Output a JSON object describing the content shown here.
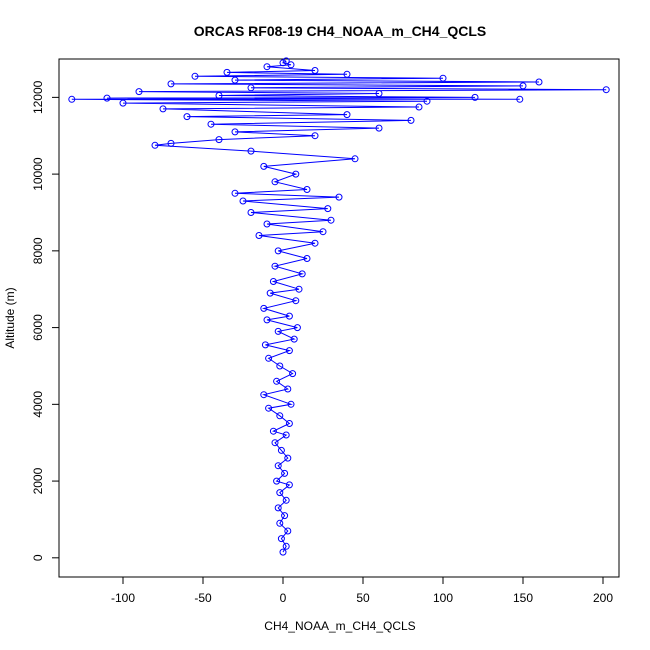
{
  "chart_data": {
    "type": "scatter",
    "title": "ORCAS RF08-19 CH4_NOAA_m_CH4_QCLS",
    "xlabel": "CH4_NOAA_m_CH4_QCLS",
    "ylabel": "Altitude (m)",
    "xlim": [
      -140,
      210
    ],
    "ylim": [
      -500,
      13000
    ],
    "x_ticks": [
      -100,
      -50,
      0,
      50,
      100,
      150,
      200
    ],
    "y_ticks": [
      0,
      2000,
      4000,
      6000,
      8000,
      10000,
      12000
    ],
    "grid": false,
    "legend": "none",
    "series_color": "#0000ff",
    "marker": "open-circle",
    "connected": true,
    "series": [
      {
        "points": [
          [
            0,
            150
          ],
          [
            2,
            300
          ],
          [
            -1,
            500
          ],
          [
            3,
            700
          ],
          [
            -2,
            900
          ],
          [
            1,
            1100
          ],
          [
            -3,
            1300
          ],
          [
            2,
            1500
          ],
          [
            -2,
            1700
          ],
          [
            4,
            1900
          ],
          [
            -4,
            2000
          ],
          [
            1,
            2200
          ],
          [
            -3,
            2400
          ],
          [
            3,
            2600
          ],
          [
            -1,
            2800
          ],
          [
            -5,
            3000
          ],
          [
            2,
            3200
          ],
          [
            -6,
            3300
          ],
          [
            4,
            3500
          ],
          [
            -2,
            3700
          ],
          [
            -9,
            3900
          ],
          [
            5,
            4000
          ],
          [
            -12,
            4250
          ],
          [
            3,
            4400
          ],
          [
            -4,
            4600
          ],
          [
            6,
            4800
          ],
          [
            -2,
            5000
          ],
          [
            -9,
            5200
          ],
          [
            4,
            5400
          ],
          [
            -11,
            5550
          ],
          [
            7,
            5700
          ],
          [
            -3,
            5900
          ],
          [
            9,
            6000
          ],
          [
            -10,
            6200
          ],
          [
            4,
            6300
          ],
          [
            -12,
            6500
          ],
          [
            8,
            6700
          ],
          [
            -8,
            6900
          ],
          [
            10,
            7000
          ],
          [
            -6,
            7200
          ],
          [
            12,
            7400
          ],
          [
            -5,
            7600
          ],
          [
            15,
            7800
          ],
          [
            -3,
            8000
          ],
          [
            20,
            8200
          ],
          [
            -15,
            8400
          ],
          [
            25,
            8500
          ],
          [
            -10,
            8700
          ],
          [
            30,
            8800
          ],
          [
            -20,
            9000
          ],
          [
            28,
            9100
          ],
          [
            -25,
            9300
          ],
          [
            35,
            9400
          ],
          [
            -30,
            9500
          ],
          [
            15,
            9600
          ],
          [
            -5,
            9800
          ],
          [
            8,
            10000
          ],
          [
            -12,
            10200
          ],
          [
            45,
            10400
          ],
          [
            -20,
            10600
          ],
          [
            -80,
            10750
          ],
          [
            -70,
            10800
          ],
          [
            -40,
            10900
          ],
          [
            20,
            11000
          ],
          [
            -30,
            11100
          ],
          [
            60,
            11200
          ],
          [
            -45,
            11300
          ],
          [
            80,
            11400
          ],
          [
            -60,
            11500
          ],
          [
            40,
            11550
          ],
          [
            -75,
            11700
          ],
          [
            85,
            11750
          ],
          [
            -100,
            11850
          ],
          [
            90,
            11900
          ],
          [
            -132,
            11950
          ],
          [
            148,
            11950
          ],
          [
            -110,
            11980
          ],
          [
            120,
            12000
          ],
          [
            -40,
            12050
          ],
          [
            60,
            12100
          ],
          [
            -90,
            12150
          ],
          [
            202,
            12200
          ],
          [
            -20,
            12250
          ],
          [
            150,
            12300
          ],
          [
            -70,
            12350
          ],
          [
            160,
            12400
          ],
          [
            -30,
            12450
          ],
          [
            100,
            12500
          ],
          [
            -55,
            12550
          ],
          [
            40,
            12600
          ],
          [
            -35,
            12650
          ],
          [
            20,
            12700
          ],
          [
            -10,
            12800
          ],
          [
            5,
            12850
          ],
          [
            0,
            12900
          ],
          [
            2,
            12950
          ]
        ]
      }
    ]
  }
}
